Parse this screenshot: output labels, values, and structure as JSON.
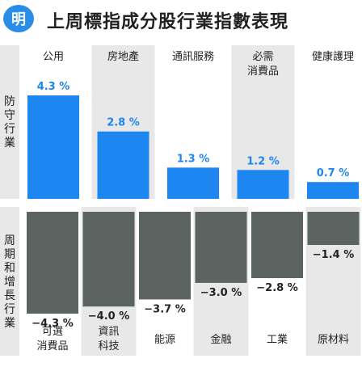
{
  "header": {
    "logo": "明",
    "title": "上周標指成分股行業指數表現"
  },
  "sections": [
    {
      "label": [
        "防",
        "守",
        "行",
        "業"
      ]
    },
    {
      "label": [
        "周",
        "期",
        "和",
        "增",
        "長",
        "行",
        "業"
      ]
    }
  ],
  "chart_data": [
    {
      "type": "bar",
      "name": "防守行業",
      "categories": [
        [
          "公用"
        ],
        [
          "房地產"
        ],
        [
          "通訊服務"
        ],
        [
          "必需",
          "消費品"
        ],
        [
          "健康護理"
        ]
      ],
      "values": [
        4.3,
        2.8,
        1.3,
        1.2,
        0.7
      ],
      "labels": [
        "4.3 %",
        "2.8 %",
        "1.3 %",
        "1.2 %",
        "0.7 %"
      ],
      "color": "#1e86f0"
    },
    {
      "type": "bar",
      "name": "周期和增長行業",
      "categories": [
        [
          "可選",
          "消費品"
        ],
        [
          "資訊",
          "科技"
        ],
        [
          "能源"
        ],
        [
          "金融"
        ],
        [
          "工業"
        ],
        [
          "原材料"
        ]
      ],
      "values": [
        -4.3,
        -4.0,
        -3.7,
        -3.0,
        -2.8,
        -1.4
      ],
      "labels": [
        "−4.3 %",
        "−4.0 %",
        "−3.7 %",
        "−3.0 %",
        "−2.8 %",
        "−1.4 %"
      ],
      "color": "#5b6461"
    }
  ],
  "colors": {
    "band": "#e8e8e8",
    "positive": "#1e86f0",
    "negative": "#5b6461",
    "value_positive": "#1e86f0",
    "value_negative": "#222222"
  }
}
